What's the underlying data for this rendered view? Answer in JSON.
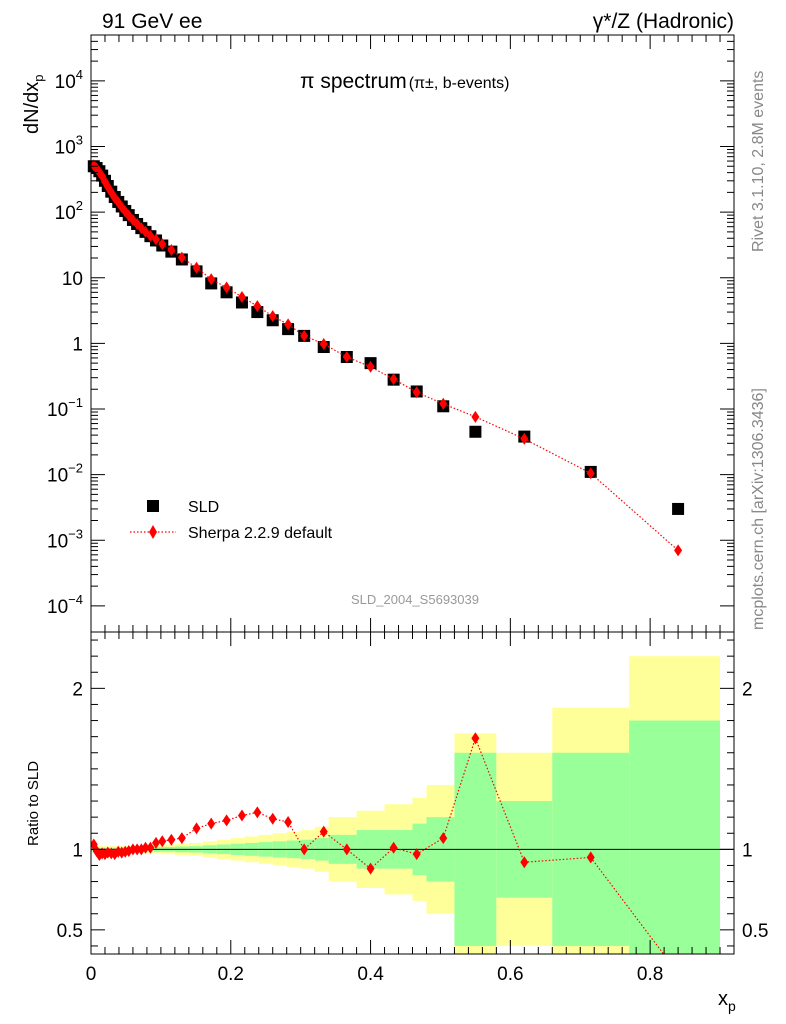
{
  "header": {
    "left": "91 GeV ee",
    "right": "γ*/Z (Hadronic)"
  },
  "side_labels": {
    "rivet": "Rivet 3.1.10,  2.8M events",
    "mcplots": "mcplots.cern.ch [arXiv:1306.3436]"
  },
  "chart_data": [
    {
      "type": "scatter",
      "title": "π spectrum",
      "title_suffix": "(π±, b-events)",
      "watermark": "SLD_2004_S5693039",
      "xlabel": "x",
      "xlabel_sub": "p",
      "ylabel": "dN/dx",
      "ylabel_sub": "p",
      "xlim": [
        0,
        0.92
      ],
      "ylim": [
        4e-05,
        50000
      ],
      "yscale": "log",
      "x_ticks": [
        "0",
        "0.2",
        "0.4",
        "0.6",
        "0.8"
      ],
      "y_ticks": [
        "10^-4",
        "10^-3",
        "10^-2",
        "10^-1",
        "1",
        "10",
        "10^2",
        "10^3",
        "10^4"
      ],
      "legend_position": "bottom-left",
      "series": [
        {
          "name": "SLD",
          "color": "#000000",
          "marker": "square",
          "x": [
            0.004,
            0.008,
            0.012,
            0.016,
            0.02,
            0.024,
            0.029,
            0.034,
            0.039,
            0.044,
            0.049,
            0.054,
            0.06,
            0.066,
            0.072,
            0.078,
            0.085,
            0.093,
            0.102,
            0.115,
            0.13,
            0.151,
            0.172,
            0.194,
            0.216,
            0.238,
            0.26,
            0.282,
            0.305,
            0.333,
            0.366,
            0.4,
            0.433,
            0.466,
            0.504,
            0.55,
            0.62,
            0.715,
            0.84
          ],
          "y": [
            500,
            470,
            420,
            360,
            300,
            250,
            205,
            170,
            143,
            122,
            104,
            90,
            76,
            66,
            57,
            50,
            43,
            37,
            31,
            25,
            19,
            12.5,
            8.2,
            6.0,
            4.2,
            3.0,
            2.25,
            1.65,
            1.3,
            0.88,
            0.62,
            0.5,
            0.28,
            0.185,
            0.11,
            0.045,
            0.038,
            0.011,
            0.003
          ]
        },
        {
          "name": "Sherpa 2.2.9 default",
          "color": "#ff0000",
          "marker": "diamond",
          "line": "dotted",
          "x": [
            0.004,
            0.008,
            0.012,
            0.016,
            0.02,
            0.024,
            0.029,
            0.034,
            0.039,
            0.044,
            0.049,
            0.054,
            0.06,
            0.066,
            0.072,
            0.078,
            0.085,
            0.093,
            0.102,
            0.115,
            0.13,
            0.151,
            0.172,
            0.194,
            0.216,
            0.238,
            0.26,
            0.282,
            0.305,
            0.333,
            0.366,
            0.4,
            0.433,
            0.466,
            0.504,
            0.55,
            0.62,
            0.715,
            0.84
          ],
          "y": [
            515,
            465,
            405,
            350,
            290,
            245,
            200,
            165,
            141,
            119,
            102,
            89,
            76,
            66,
            57,
            50,
            43.5,
            38.5,
            32.6,
            26.5,
            20.3,
            14.2,
            9.5,
            7.1,
            5.1,
            3.7,
            2.6,
            1.95,
            1.3,
            0.98,
            0.62,
            0.44,
            0.285,
            0.18,
            0.12,
            0.076,
            0.035,
            0.0105,
            0.0007
          ]
        }
      ]
    },
    {
      "type": "line",
      "ylabel": "Ratio to SLD",
      "xlim": [
        0,
        0.92
      ],
      "ylim": [
        0.35,
        2.35
      ],
      "reference_line": 1,
      "y_ticks": [
        "0.5",
        "1",
        "2"
      ],
      "bands": {
        "edges": [
          0,
          0.01,
          0.02,
          0.03,
          0.04,
          0.05,
          0.06,
          0.07,
          0.08,
          0.09,
          0.1,
          0.12,
          0.14,
          0.16,
          0.18,
          0.2,
          0.22,
          0.24,
          0.26,
          0.28,
          0.3,
          0.32,
          0.34,
          0.38,
          0.42,
          0.46,
          0.48,
          0.52,
          0.58,
          0.66,
          0.77,
          0.9
        ],
        "stat_half_width": [
          0.01,
          0.01,
          0.01,
          0.01,
          0.01,
          0.01,
          0.01,
          0.012,
          0.012,
          0.015,
          0.015,
          0.018,
          0.02,
          0.025,
          0.03,
          0.035,
          0.04,
          0.045,
          0.05,
          0.055,
          0.06,
          0.07,
          0.09,
          0.12,
          0.12,
          0.16,
          0.2,
          0.6,
          0.3,
          0.6,
          0.8
        ],
        "total_half_width": [
          0.02,
          0.02,
          0.02,
          0.02,
          0.02,
          0.02,
          0.02,
          0.022,
          0.025,
          0.025,
          0.03,
          0.035,
          0.04,
          0.05,
          0.06,
          0.07,
          0.08,
          0.09,
          0.1,
          0.11,
          0.12,
          0.14,
          0.2,
          0.24,
          0.28,
          0.32,
          0.4,
          0.72,
          0.6,
          0.88,
          1.2
        ],
        "stat_color": "#99ff99",
        "total_color": "#ffff99"
      },
      "series": [
        {
          "name": "Sherpa 2.2.9 default",
          "color": "#ff0000",
          "marker": "diamond",
          "line": "dotted",
          "x": [
            0.004,
            0.008,
            0.012,
            0.016,
            0.02,
            0.024,
            0.029,
            0.034,
            0.039,
            0.044,
            0.049,
            0.054,
            0.06,
            0.066,
            0.072,
            0.078,
            0.085,
            0.093,
            0.102,
            0.115,
            0.13,
            0.151,
            0.172,
            0.194,
            0.216,
            0.238,
            0.26,
            0.282,
            0.305,
            0.333,
            0.366,
            0.4,
            0.433,
            0.466,
            0.504,
            0.55,
            0.62,
            0.715,
            0.84
          ],
          "y": [
            1.03,
            0.99,
            0.965,
            0.975,
            0.97,
            0.98,
            0.975,
            0.97,
            0.985,
            0.98,
            0.985,
            0.99,
            1.0,
            1.0,
            1.0,
            1.01,
            1.01,
            1.04,
            1.05,
            1.06,
            1.07,
            1.13,
            1.16,
            1.18,
            1.21,
            1.23,
            1.19,
            1.17,
            1.0,
            1.11,
            1.0,
            0.88,
            1.01,
            0.97,
            1.07,
            1.69,
            0.92,
            0.95,
            0.23
          ]
        }
      ]
    }
  ]
}
